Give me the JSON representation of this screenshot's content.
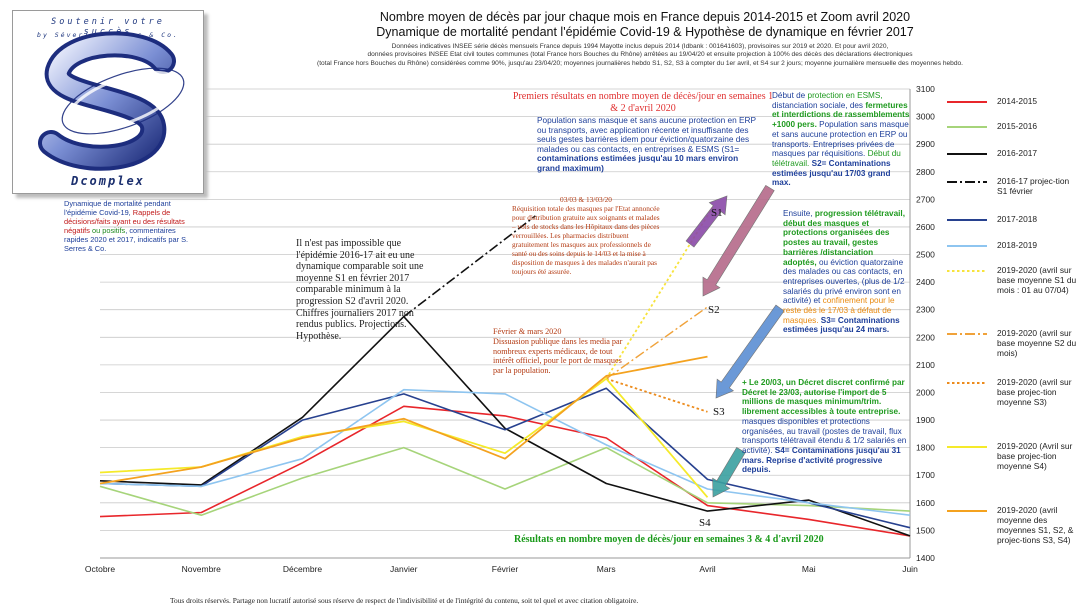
{
  "title": {
    "line1": "Nombre moyen de décès par jour chaque mois en France depuis 2014-2015 et Zoom avril 2020",
    "line2": "Dynamique de mortalité pendant l'épidémie Covid-19 & Hypothèse de dynamique en février 2017"
  },
  "sources": {
    "line1": "Données indicatives INSEE série décès mensuels France depuis 1994 Mayotte inclus depuis 2014 (Idbank : 001641603), provisoires sur 2019 et 2020. Et pour avril 2020,",
    "line2": "données provisoires INSEE Etat civil toutes communes (total France hors Bouches du Rhône) arrêtées au 19/04/20 et ensuite projection à 100% des décès des déclarations électroniques",
    "line3": "(total France hors Bouches du Rhône) considérées comme 90%, jusqu'au 23/04/20; moyennes journalières hebdo S1, S2, S3 à compter du 1er avril, et S4 sur 2 jours; moyenne journalière mensuelle des moyennes hebdo."
  },
  "logo": {
    "slogan": "Soutenir votre succès",
    "by": "by Séverine Serres & Co.",
    "brand": "Dcomplex"
  },
  "side_note": {
    "part1": "Dynamique de mortalité pendant l'épidémie Covid-19,",
    "part2": "Rappels de décisions/faits ayant eu des résultats négatifs",
    "part3": "ou positifs",
    "part4": ", commentaires rapides 2020 et 2017, indicatifs par S. Serres & Co."
  },
  "hypothesis_note": "Il n'est pas impossible que l'épidémie 2016-17 ait eu une dynamique comparable soit une moyenne S1 en février 2017 comparable minimum à la progression S2 d'avril 2020. Chiffres journaliers 2017 non rendus publics. Projections. Hypothèse.",
  "annotations": {
    "first_results": "Premiers résultats en nombre moyen de décès/jour en semaines 1 & 2 d'avril 2020",
    "s1_text_a": "Population sans masque et sans aucune protection en ERP ou transports, avec application récente et insuffisante des seuls gestes barrières idem pour éviction/quatorzaine des malades ou cas contacts, en entreprises & ESMS (S1=",
    "s1_text_b": "contaminations estimées jusqu'au 10 mars environ grand maximum)",
    "masks_dates": "03/03 & 13/03/20",
    "masks_text": "Réquisition totale des masques par l'Etat annoncée pour distribution gratuite aux soignants et malades – vols de stocks dans les Hôpitaux dans des pièces verrouillées. Les pharmacies distribuent gratuitement les masques aux professionnels de santé ou des soins depuis le 14/03 et la mise à disposition de masques à des malades n'aurait pas toujours été assurée.",
    "feb_march_title": "Février & mars 2020",
    "feb_march_text": "Dissuasion publique dans les media par nombreux experts médicaux, de tout intérêt officiel, pour le port de masques par la population.",
    "r1_a": "Début de",
    "r1_b": "protection en ESMS,",
    "r1_c": "distanciation sociale, des",
    "r1_d": "fermetures et interdictions de rassemblements +1000 pers.",
    "r1_e": "Population sans masque et sans aucune protection en ERP ou transports. Entreprises privées de masques par réquisitions.",
    "r1_f": "Début du télétravail.",
    "r1_g": "S2= Contaminations estimées jusqu'au 17/03 grand max.",
    "r2_a": "Ensuite,",
    "r2_b": "progression télétravail, début des masques et protections organisées des postes au travail, gestes barrières /distanciation adoptés,",
    "r2_c": "ou éviction quatorzaine des malades ou cas contacts, en entreprises ouvertes, (plus de 1/2 salariés du privé environ sont en activité) et",
    "r2_d": "confinement pour le reste dès le 17/03 à défaut de masques.",
    "r2_e": "S3= Contaminations estimées jusqu'au 24 mars.",
    "r3_a": "+ Le 20/03, un Décret discret confirmé par Décret le 23/03, autorise l'import de 5 millions de masques minimum/trim. librement accessibles à toute entreprise.",
    "r3_b": "masques disponibles et protections organisées, au travail (postes de travail, flux transports télétravail étendu & 1/2 salariés en activité).",
    "r3_c": "S4= Contaminations jusqu'au 31 mars. Reprise d'activité progressive depuis.",
    "bottom": "Résultats en nombre moyen de décès/jour en semaines 3 & 4 d'avril 2020",
    "s1": "S1",
    "s2": "S2",
    "s3": "S3",
    "s4": "S4"
  },
  "footer": "Tous droits réservés. Partage non lucratif autorisé sous réserve de respect de l'indivisibilité et de l'intégrité du contenu, soit tel quel et avec citation obligatoire.",
  "chart_data": {
    "type": "line",
    "categories": [
      "Octobre",
      "Novembre",
      "Décembre",
      "Janvier",
      "Février",
      "Mars",
      "Avril",
      "Mai",
      "Juin"
    ],
    "ylim": [
      1400,
      3100
    ],
    "yticks": [
      1400,
      1500,
      1600,
      1700,
      1800,
      1900,
      2000,
      2100,
      2200,
      2300,
      2400,
      2500,
      2600,
      2700,
      2800,
      2900,
      3000,
      3100
    ],
    "grid": true,
    "legend_position": "right",
    "series": [
      {
        "name": "2014-2015",
        "color": "#e8262b",
        "style": "solid",
        "width": 1.6,
        "values": [
          1550,
          1565,
          1745,
          1950,
          1915,
          1835,
          1590,
          1540,
          1480
        ]
      },
      {
        "name": "2015-2016",
        "color": "#a6d47a",
        "style": "solid",
        "width": 1.6,
        "values": [
          1660,
          1555,
          1690,
          1800,
          1650,
          1800,
          1600,
          1590,
          1570
        ]
      },
      {
        "name": "2016-2017",
        "color": "#111111",
        "style": "solid",
        "width": 1.6,
        "values": [
          1680,
          1665,
          1910,
          2275,
          1870,
          1670,
          1570,
          1610,
          1480
        ]
      },
      {
        "name": "2016-17 projec-tion S1 février",
        "color": "#111111",
        "style": "dashdot",
        "width": 1.6,
        "x": [
          3,
          4.3
        ],
        "values": [
          2275,
          2640
        ]
      },
      {
        "name": "2017-2018",
        "color": "#27418f",
        "style": "solid",
        "width": 1.6,
        "values": [
          1670,
          1660,
          1900,
          1995,
          1865,
          2015,
          1685,
          1600,
          1510
        ]
      },
      {
        "name": "2018-2019",
        "color": "#8ec5f0",
        "style": "solid",
        "width": 1.6,
        "values": [
          1670,
          1660,
          1760,
          2010,
          1995,
          1810,
          1650,
          1600,
          1555
        ]
      },
      {
        "name": "2019-2020 (avril sur base moyenne S1 du mois : 01 au 07/04)",
        "color": "#f7e33c",
        "style": "dotted",
        "width": 1.8,
        "x": [
          5,
          6.05
        ],
        "values": [
          2050,
          2670
        ]
      },
      {
        "name": "2019-2020 (avril sur base moyenne S2 du mois)",
        "color": "#f0a23a",
        "style": "dashdot",
        "width": 1.4,
        "x": [
          5,
          6
        ],
        "values": [
          2050,
          2310
        ]
      },
      {
        "name": "2019-2020 (avril sur base projec-tion moyenne S3)",
        "color": "#ec8b1c",
        "style": "dotted",
        "width": 1.8,
        "x": [
          5,
          6
        ],
        "values": [
          2050,
          1930
        ]
      },
      {
        "name": "2019-2020 (Avril sur base projec-tion moyenne S4)",
        "color": "#f5ea2a",
        "style": "solid",
        "width": 1.8,
        "values": [
          1710,
          1730,
          1840,
          1895,
          1780,
          2050,
          1620,
          null,
          null
        ]
      },
      {
        "name": "2019-2020 (avril moyenne des moyennes S1, S2, & projec-tions S3, S4)",
        "color": "#f4a21f",
        "style": "solid",
        "width": 1.8,
        "values": [
          1670,
          1730,
          1835,
          1905,
          1760,
          2060,
          2130,
          null,
          null
        ]
      }
    ]
  }
}
